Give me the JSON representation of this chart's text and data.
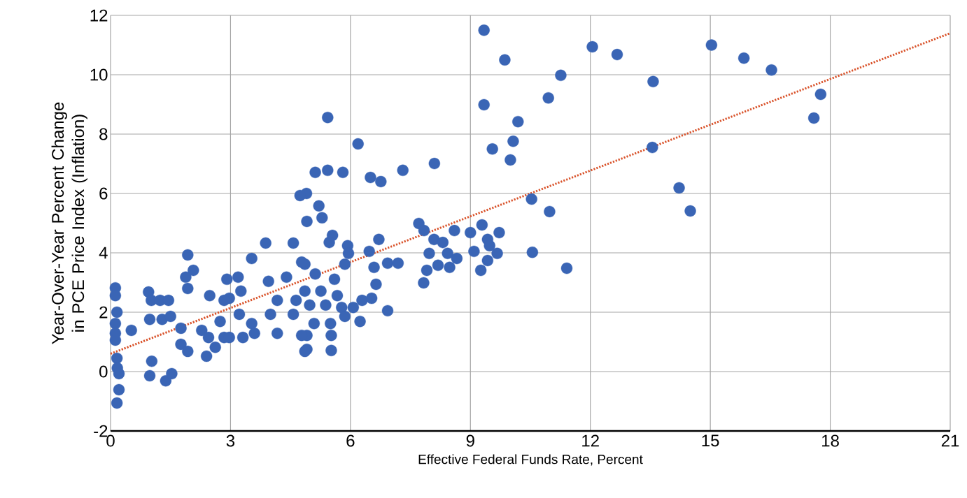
{
  "chart_data": {
    "type": "scatter",
    "xlabel": "Effective Federal Funds Rate, Percent",
    "ylabel": "Year-Over-Year Percent Change in PCE Price Index (Inflation)",
    "xlim": [
      0,
      21
    ],
    "ylim": [
      -2,
      12
    ],
    "xticks": [
      0,
      3,
      6,
      9,
      12,
      15,
      18,
      21
    ],
    "yticks": [
      -2,
      0,
      2,
      4,
      6,
      8,
      10,
      12
    ],
    "grid": true,
    "series": [
      {
        "type": "scatter",
        "marker": "circle",
        "color": "#3a65b5",
        "x": [
          9.34,
          9.86,
          12.05,
          12.67,
          15.03,
          11.26,
          13.57,
          9.34,
          10.95,
          10.19,
          10.07,
          9.55,
          10.0,
          13.55,
          14.22,
          14.5,
          10.53,
          10.98,
          9.29,
          9.0,
          9.72,
          9.43,
          9.48,
          9.09,
          9.67,
          10.55,
          9.43,
          9.26,
          11.41,
          15.84,
          16.53,
          17.76,
          17.59,
          5.43,
          6.19,
          8.1,
          5.12,
          5.43,
          5.81,
          6.5,
          6.76,
          7.31,
          4.9,
          5.21,
          5.29,
          4.91,
          5.55,
          5.47,
          5.93,
          5.95,
          5.86,
          6.71,
          6.47,
          6.59,
          6.93,
          7.19,
          6.64,
          6.93,
          7.71,
          7.84,
          8.6,
          8.09,
          8.31,
          7.97,
          8.43,
          8.66,
          8.19,
          8.48,
          7.91,
          7.83,
          4.86,
          5.12,
          5.6,
          4.86,
          5.26,
          5.67,
          4.98,
          5.38,
          5.78,
          6.07,
          6.29,
          6.53,
          6.24,
          5.09,
          5.5,
          5.52,
          5.52,
          4.91,
          5.86,
          4.91,
          0.12,
          0.12,
          0.16,
          0.12,
          0.12,
          0.12,
          0.16,
          0.17,
          0.21,
          0.21,
          0.16,
          0.52,
          0.95,
          1.02,
          0.98,
          1.03,
          0.98,
          1.38,
          1.53,
          1.24,
          1.45,
          1.29,
          1.5,
          1.93,
          2.07,
          1.88,
          1.93,
          2.48,
          1.76,
          1.76,
          1.93,
          2.28,
          2.45,
          2.4,
          2.62,
          2.74,
          2.84,
          2.91,
          2.97,
          3.19,
          2.84,
          3.26,
          3.53,
          3.88,
          4.57,
          3.22,
          3.53,
          2.97,
          3.31,
          3.6,
          3.95,
          4.17,
          4.0,
          4.17,
          4.4,
          4.64,
          4.57,
          4.78,
          4.74,
          4.78,
          4.86
        ],
        "values": [
          11.5,
          10.5,
          10.94,
          10.68,
          11.0,
          9.98,
          9.77,
          8.99,
          9.22,
          8.42,
          7.76,
          7.5,
          7.13,
          7.55,
          6.19,
          5.41,
          5.81,
          5.39,
          4.94,
          4.68,
          4.68,
          4.45,
          4.24,
          4.05,
          3.98,
          4.02,
          3.74,
          3.41,
          3.48,
          10.56,
          10.16,
          9.34,
          8.54,
          8.56,
          7.67,
          7.01,
          6.71,
          6.78,
          6.71,
          6.54,
          6.4,
          6.78,
          6.0,
          5.58,
          5.18,
          5.06,
          4.59,
          4.35,
          4.24,
          3.98,
          3.62,
          4.45,
          4.05,
          3.51,
          3.65,
          3.65,
          2.94,
          2.05,
          4.99,
          4.75,
          4.75,
          4.45,
          4.35,
          3.98,
          3.98,
          3.81,
          3.58,
          3.51,
          3.41,
          2.99,
          3.62,
          3.29,
          3.11,
          2.71,
          2.71,
          2.56,
          2.24,
          2.24,
          2.16,
          2.16,
          2.4,
          2.47,
          1.69,
          1.62,
          1.62,
          1.22,
          0.71,
          0.75,
          1.86,
          1.22,
          2.82,
          2.56,
          2.0,
          1.62,
          1.29,
          1.06,
          0.45,
          0.12,
          -0.07,
          -0.61,
          -1.06,
          1.39,
          2.68,
          2.4,
          1.76,
          0.35,
          -0.14,
          -0.31,
          -0.07,
          2.4,
          2.4,
          1.76,
          1.86,
          3.93,
          3.41,
          3.18,
          2.8,
          2.56,
          1.46,
          0.92,
          0.68,
          1.39,
          1.15,
          0.52,
          0.82,
          1.69,
          1.15,
          3.11,
          2.47,
          3.18,
          2.4,
          2.71,
          3.81,
          4.33,
          4.33,
          1.93,
          1.62,
          1.15,
          1.15,
          1.29,
          3.04,
          2.4,
          1.93,
          1.29,
          3.18,
          2.4,
          1.93,
          3.69,
          5.93,
          1.22,
          0.68
        ]
      },
      {
        "type": "line",
        "color": "#d9532b",
        "line_style": "dotted",
        "x": [
          0,
          21
        ],
        "values": [
          0.6,
          11.4
        ]
      }
    ]
  }
}
